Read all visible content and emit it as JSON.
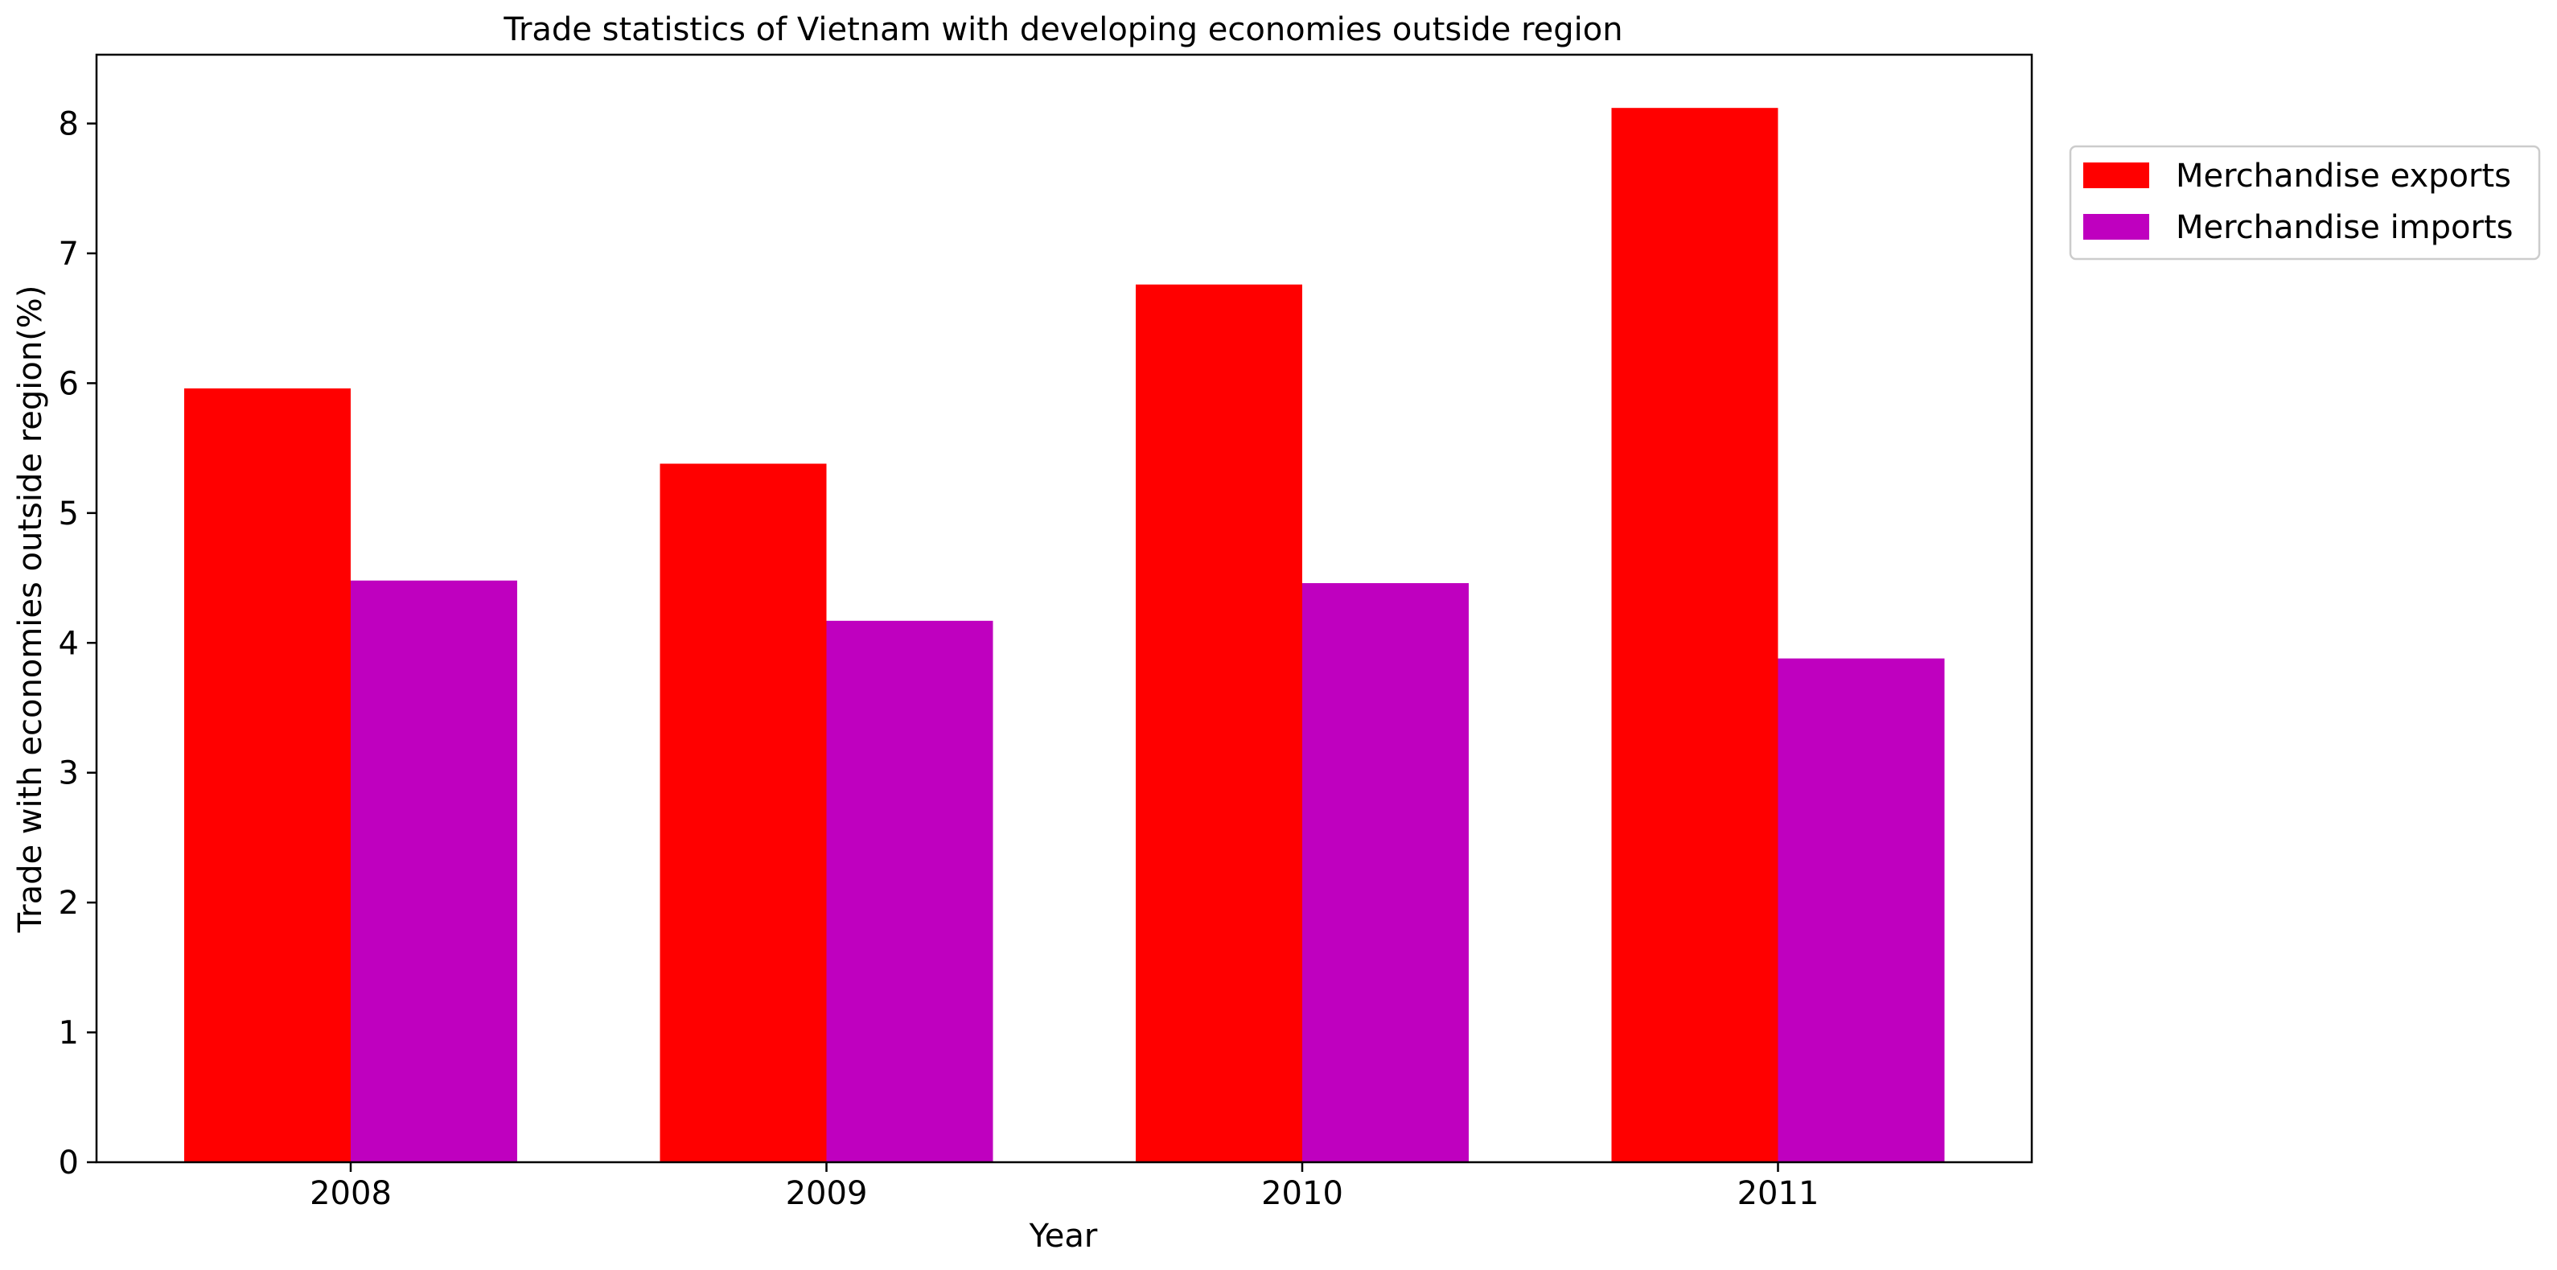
{
  "chart_data": {
    "type": "bar",
    "title": "Trade statistics of Vietnam with developing economies outside region",
    "xlabel": "Year",
    "ylabel": "Trade with economies outside region(%)",
    "categories": [
      "2008",
      "2009",
      "2010",
      "2011"
    ],
    "series": [
      {
        "name": "Merchandise exports",
        "color": "#ff0000",
        "values": [
          5.96,
          5.38,
          6.76,
          8.12
        ]
      },
      {
        "name": "Merchandise imports",
        "color": "#bf00bf",
        "values": [
          4.48,
          4.17,
          4.46,
          3.88
        ]
      }
    ],
    "ylim": [
      0,
      8.53
    ],
    "yticks": [
      "0",
      "1",
      "2",
      "3",
      "4",
      "5",
      "6",
      "7",
      "8"
    ],
    "grid": false,
    "legend_position": "outside-top-right"
  }
}
